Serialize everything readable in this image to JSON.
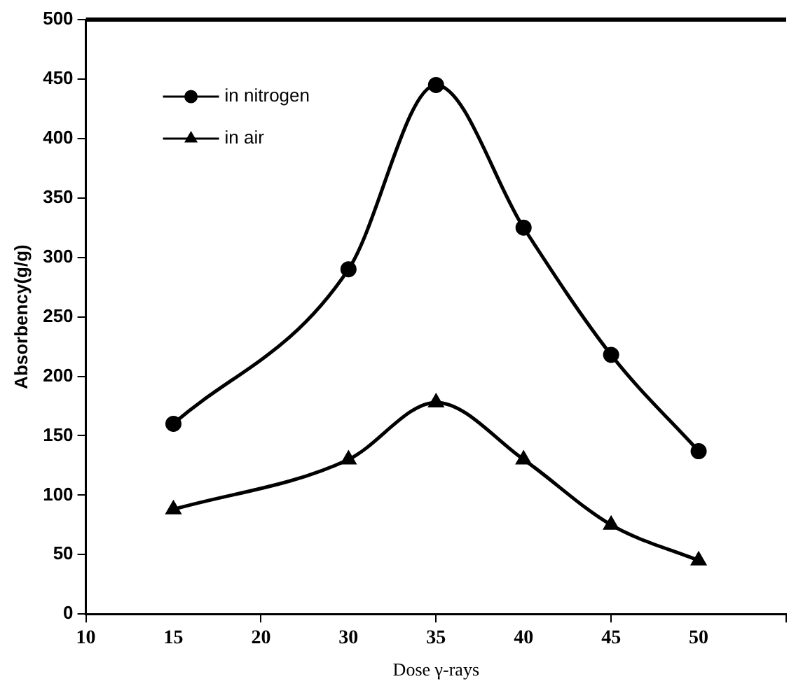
{
  "chart_data": {
    "type": "line",
    "xlabel": "Dose γ-rays",
    "ylabel": "Absorbency(g/g)",
    "categories": [
      "10",
      "15",
      "20",
      "30",
      "35",
      "40",
      "45",
      "50",
      null
    ],
    "series": [
      {
        "name": "in nitrogen",
        "color": "#000000",
        "marker": "circle",
        "values": [
          null,
          160,
          null,
          290,
          445,
          325,
          218,
          137,
          null
        ]
      },
      {
        "name": "in air",
        "color": "#000000",
        "marker": "triangle",
        "values": [
          null,
          88,
          null,
          130,
          178,
          130,
          75,
          45,
          null
        ]
      }
    ],
    "ylim": [
      0,
      500
    ],
    "yticks": [
      0,
      50,
      100,
      150,
      200,
      250,
      300,
      350,
      400,
      450,
      500
    ],
    "grid": false,
    "legend": "top left",
    "line_style": "solid"
  }
}
